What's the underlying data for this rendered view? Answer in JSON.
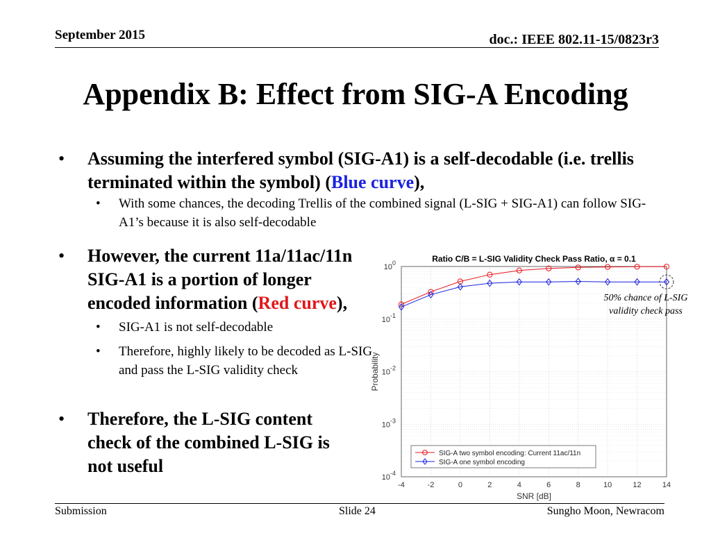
{
  "header": {
    "date": "September 2015",
    "doc": "doc.: IEEE 802.11-15/0823r3"
  },
  "title": "Appendix B: Effect from SIG-A Encoding",
  "bullet1": {
    "text_a": "Assuming the interfered symbol (SIG-A1) is a self-decodable (i.e. trellis terminated within the symbol) (",
    "blue": "Blue curve",
    "text_b": "),",
    "sub": "With some chances, the decoding Trellis of the combined signal (L-SIG + SIG-A1) can follow SIG-A1’s because it is also self-decodable"
  },
  "bullet2": {
    "text_a": "However, the current 11a/11ac/11n SIG-A1 is a portion of longer encoded information (",
    "red": "Red curve",
    "text_b": "),",
    "sub1": "SIG-A1 is not self-decodable",
    "sub2": "Therefore, highly likely to be decoded as L-SIG and pass the L-SIG validity check"
  },
  "bullet3": {
    "text": "Therefore, the L-SIG content check of the combined L-SIG is not useful"
  },
  "annotation": "50% chance of L-SIG validity check pass",
  "chart_data": {
    "type": "line",
    "title": "Ratio C/B = L-SIG Validity Check Pass Ratio, α = 0.1",
    "xlabel": "SNR [dB]",
    "ylabel": "Probability",
    "xlim": [
      -4,
      14
    ],
    "ylim": [
      0.0001,
      1
    ],
    "yscale": "log",
    "x_ticks": [
      -4,
      -2,
      0,
      2,
      4,
      6,
      8,
      10,
      12,
      14
    ],
    "y_ticks": [
      "10^0",
      "10^-1",
      "10^-2",
      "10^-3",
      "10^-4"
    ],
    "grid": true,
    "legend_position": "bottom-right",
    "x": [
      -4,
      -2,
      0,
      2,
      4,
      6,
      8,
      10,
      12,
      14
    ],
    "series": [
      {
        "name": "SIG-A two symbol encoding: Current 11ac/11n",
        "color": "#e8141b",
        "marker": "circle",
        "values": [
          0.19,
          0.33,
          0.52,
          0.7,
          0.84,
          0.92,
          0.96,
          0.98,
          0.99,
          0.995
        ]
      },
      {
        "name": "SIG-A one symbol encoding",
        "color": "#1a22e0",
        "marker": "diamond",
        "values": [
          0.17,
          0.29,
          0.41,
          0.48,
          0.51,
          0.51,
          0.52,
          0.51,
          0.51,
          0.51
        ]
      }
    ]
  },
  "footer": {
    "left": "Submission",
    "mid": "Slide 24",
    "right": "Sungho Moon, Newracom"
  }
}
